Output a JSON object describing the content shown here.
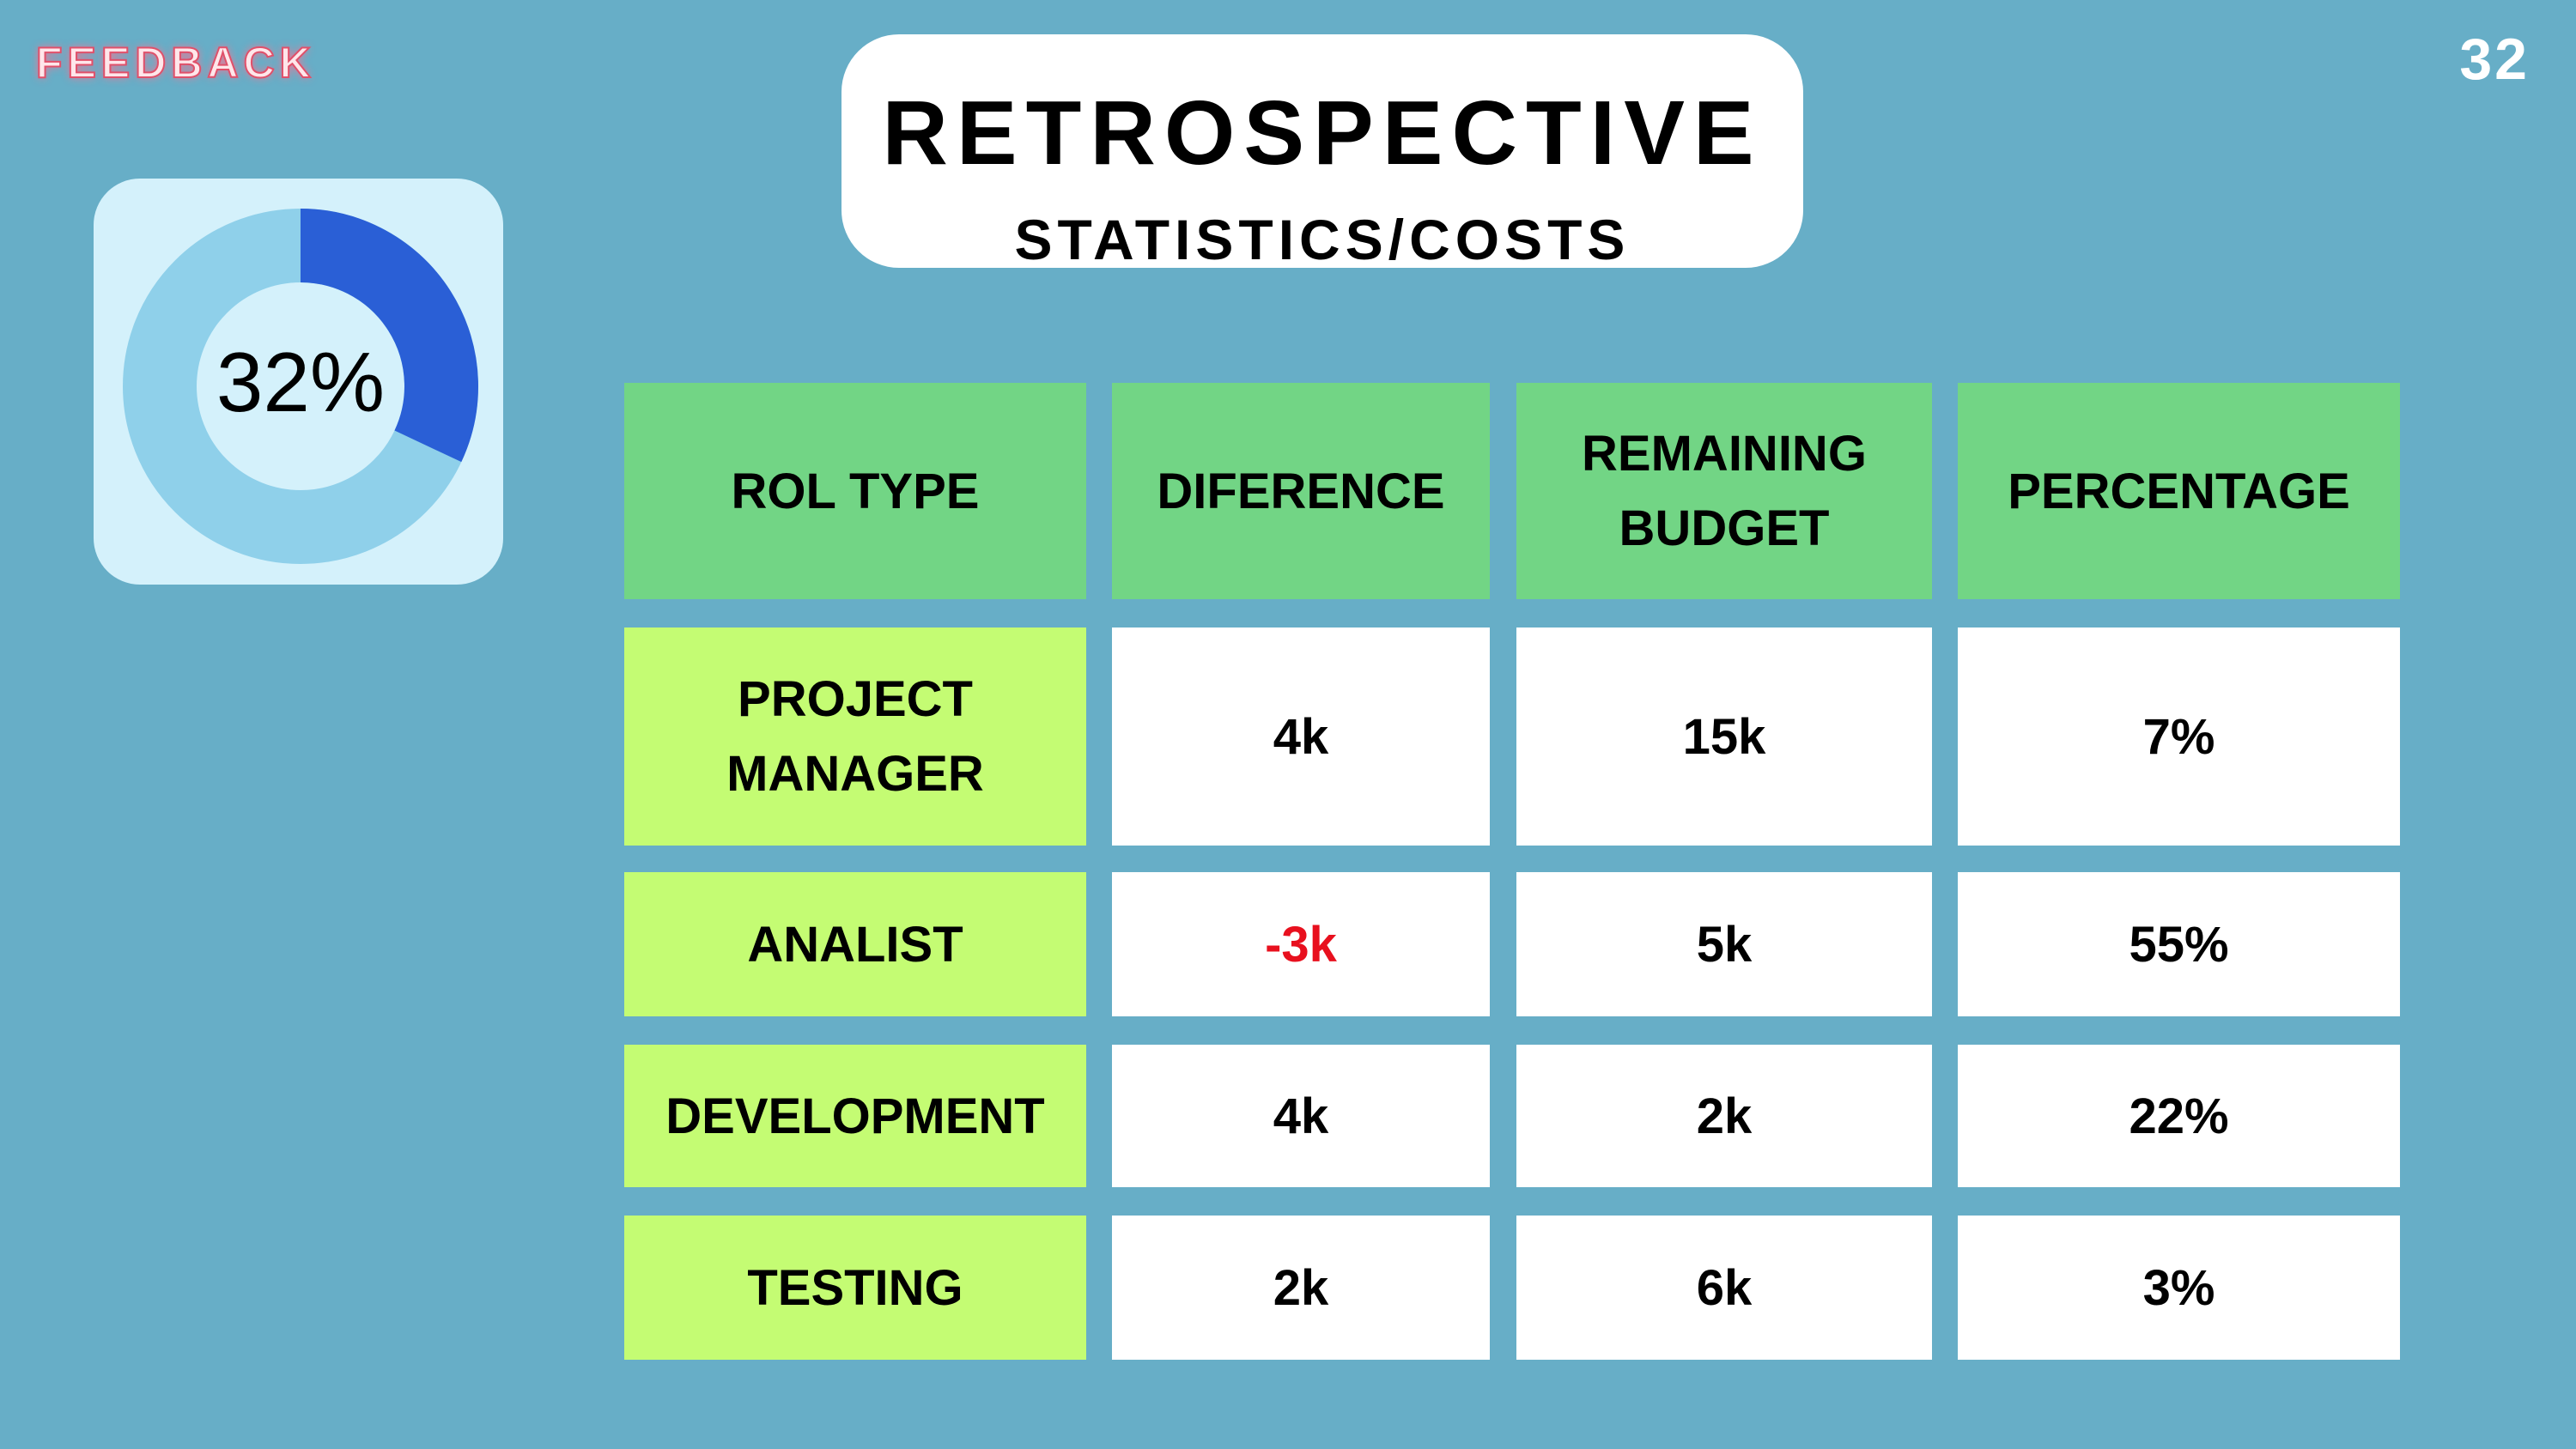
{
  "brand": "FEEDBACK",
  "page_number": "32",
  "header": {
    "title": "RETROSPECTIVE",
    "subtitle": "STATISTICS/COSTS"
  },
  "donut": {
    "value": 32,
    "label": "32%",
    "color": "#2a5fd6",
    "track_color": "#8fd0ea"
  },
  "table": {
    "columns": [
      "ROL TYPE",
      "DIFERENCE",
      "REMAINING BUDGET",
      "PERCENTAGE"
    ],
    "rows": [
      [
        "PROJECT MANAGER",
        "4k",
        "15k",
        "7%"
      ],
      [
        "ANALIST",
        "-3k",
        "5k",
        "55%"
      ],
      [
        "DEVELOPMENT",
        "4k",
        "2k",
        "22%"
      ],
      [
        "TESTING",
        "2k",
        "6k",
        "3%"
      ]
    ]
  }
}
